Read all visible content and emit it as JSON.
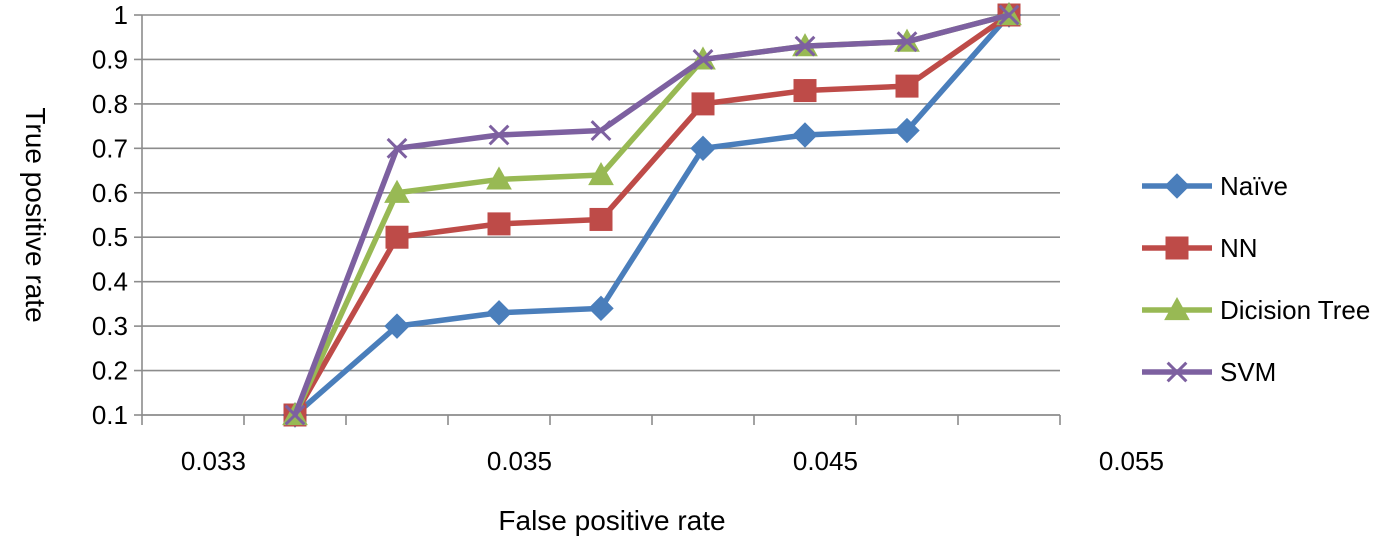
{
  "chart_data": {
    "type": "line",
    "title": "",
    "xlabel": "False positive rate",
    "ylabel": "True positive rate",
    "x_tick_labels": [
      "0.033",
      "0.035",
      "0.045",
      "0.055"
    ],
    "y_tick_labels": [
      "0.1",
      "0.2",
      "0.3",
      "0.4",
      "0.5",
      "0.6",
      "0.7",
      "0.8",
      "0.9",
      "1"
    ],
    "ylim": [
      0.1,
      1
    ],
    "grid": true,
    "legend_position": "right",
    "series": [
      {
        "name": "Naïve",
        "color": "#4A7EBB",
        "marker": "diamond",
        "values": [
          0.1,
          0.3,
          0.33,
          0.34,
          0.7,
          0.73,
          0.74,
          1.0
        ]
      },
      {
        "name": "NN",
        "color": "#BE4B48",
        "marker": "square",
        "values": [
          0.1,
          0.5,
          0.53,
          0.54,
          0.8,
          0.83,
          0.84,
          1.0
        ]
      },
      {
        "name": "Dicision Tree",
        "color": "#98B954",
        "marker": "triangle",
        "values": [
          0.1,
          0.6,
          0.63,
          0.64,
          0.9,
          0.93,
          0.94,
          1.0
        ]
      },
      {
        "name": "SVM",
        "color": "#7D60A0",
        "marker": "x",
        "values": [
          0.1,
          0.7,
          0.73,
          0.74,
          0.9,
          0.93,
          0.94,
          1.0
        ]
      }
    ]
  }
}
